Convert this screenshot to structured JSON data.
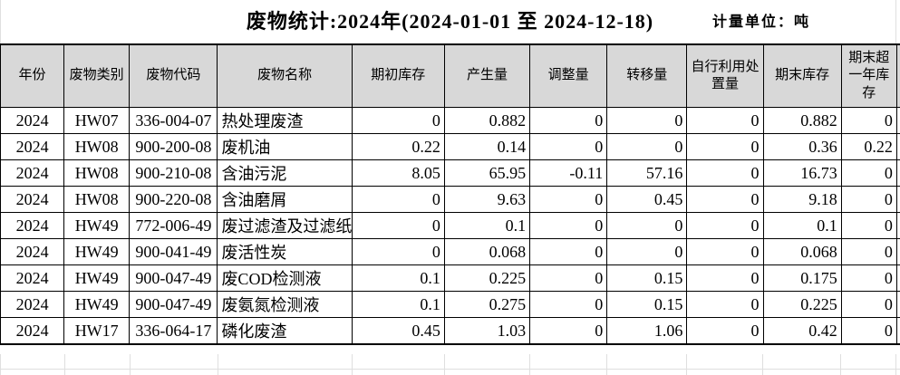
{
  "title": "废物统计:2024年(2024-01-01 至 2024-12-18)",
  "unit_label": "计量单位：吨",
  "columns": [
    "年份",
    "废物类别",
    "废物代码",
    "废物名称",
    "期初库存",
    "产生量",
    "调整量",
    "转移量",
    "自行利用处置量",
    "期末库存",
    "期末超一年库存"
  ],
  "rows": [
    [
      "2024",
      "HW07",
      "336-004-07",
      "热处理废渣",
      "0",
      "0.882",
      "0",
      "0",
      "0",
      "0.882",
      "0"
    ],
    [
      "2024",
      "HW08",
      "900-200-08",
      "废机油",
      "0.22",
      "0.14",
      "0",
      "0",
      "0",
      "0.36",
      "0.22"
    ],
    [
      "2024",
      "HW08",
      "900-210-08",
      "含油污泥",
      "8.05",
      "65.95",
      "-0.11",
      "57.16",
      "0",
      "16.73",
      "0"
    ],
    [
      "2024",
      "HW08",
      "900-220-08",
      "含油磨屑",
      "0",
      "9.63",
      "0",
      "0.45",
      "0",
      "9.18",
      "0"
    ],
    [
      "2024",
      "HW49",
      "772-006-49",
      "废过滤渣及过滤纸",
      "0",
      "0.1",
      "0",
      "0",
      "0",
      "0.1",
      "0"
    ],
    [
      "2024",
      "HW49",
      "900-041-49",
      "废活性炭",
      "0",
      "0.068",
      "0",
      "0",
      "0",
      "0.068",
      "0"
    ],
    [
      "2024",
      "HW49",
      "900-047-49",
      "废COD检测液",
      "0.1",
      "0.225",
      "0",
      "0.15",
      "0",
      "0.175",
      "0"
    ],
    [
      "2024",
      "HW49",
      "900-047-49",
      "废氨氮检测液",
      "0.1",
      "0.275",
      "0",
      "0.15",
      "0",
      "0.225",
      "0"
    ],
    [
      "2024",
      "HW17",
      "336-064-17",
      "磷化废渣",
      "0.45",
      "1.03",
      "0",
      "1.06",
      "0",
      "0.42",
      "0"
    ]
  ],
  "colors": {
    "header_bg": "#d8d8d8",
    "table_border": "#000000",
    "gridline": "#dfdfdf",
    "background": "#ffffff",
    "text": "#000000"
  }
}
